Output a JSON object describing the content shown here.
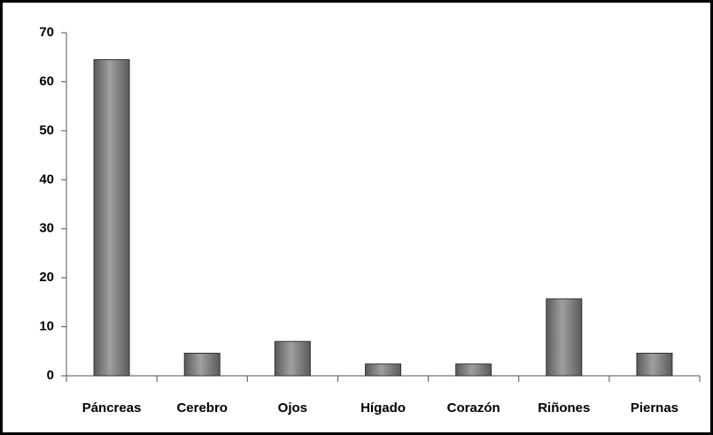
{
  "chart_data": {
    "type": "bar",
    "categories": [
      "Páncreas",
      "Cerebro",
      "Ojos",
      "Hígado",
      "Corazón",
      "Riñones",
      "Piernas"
    ],
    "values": [
      64.5,
      4.6,
      7,
      2.4,
      2.4,
      15.7,
      4.6
    ],
    "color": "#5a5a5a",
    "ylim": [
      0,
      70
    ],
    "yticks": [
      0,
      10,
      20,
      30,
      40,
      50,
      60,
      70
    ],
    "grid": false
  }
}
